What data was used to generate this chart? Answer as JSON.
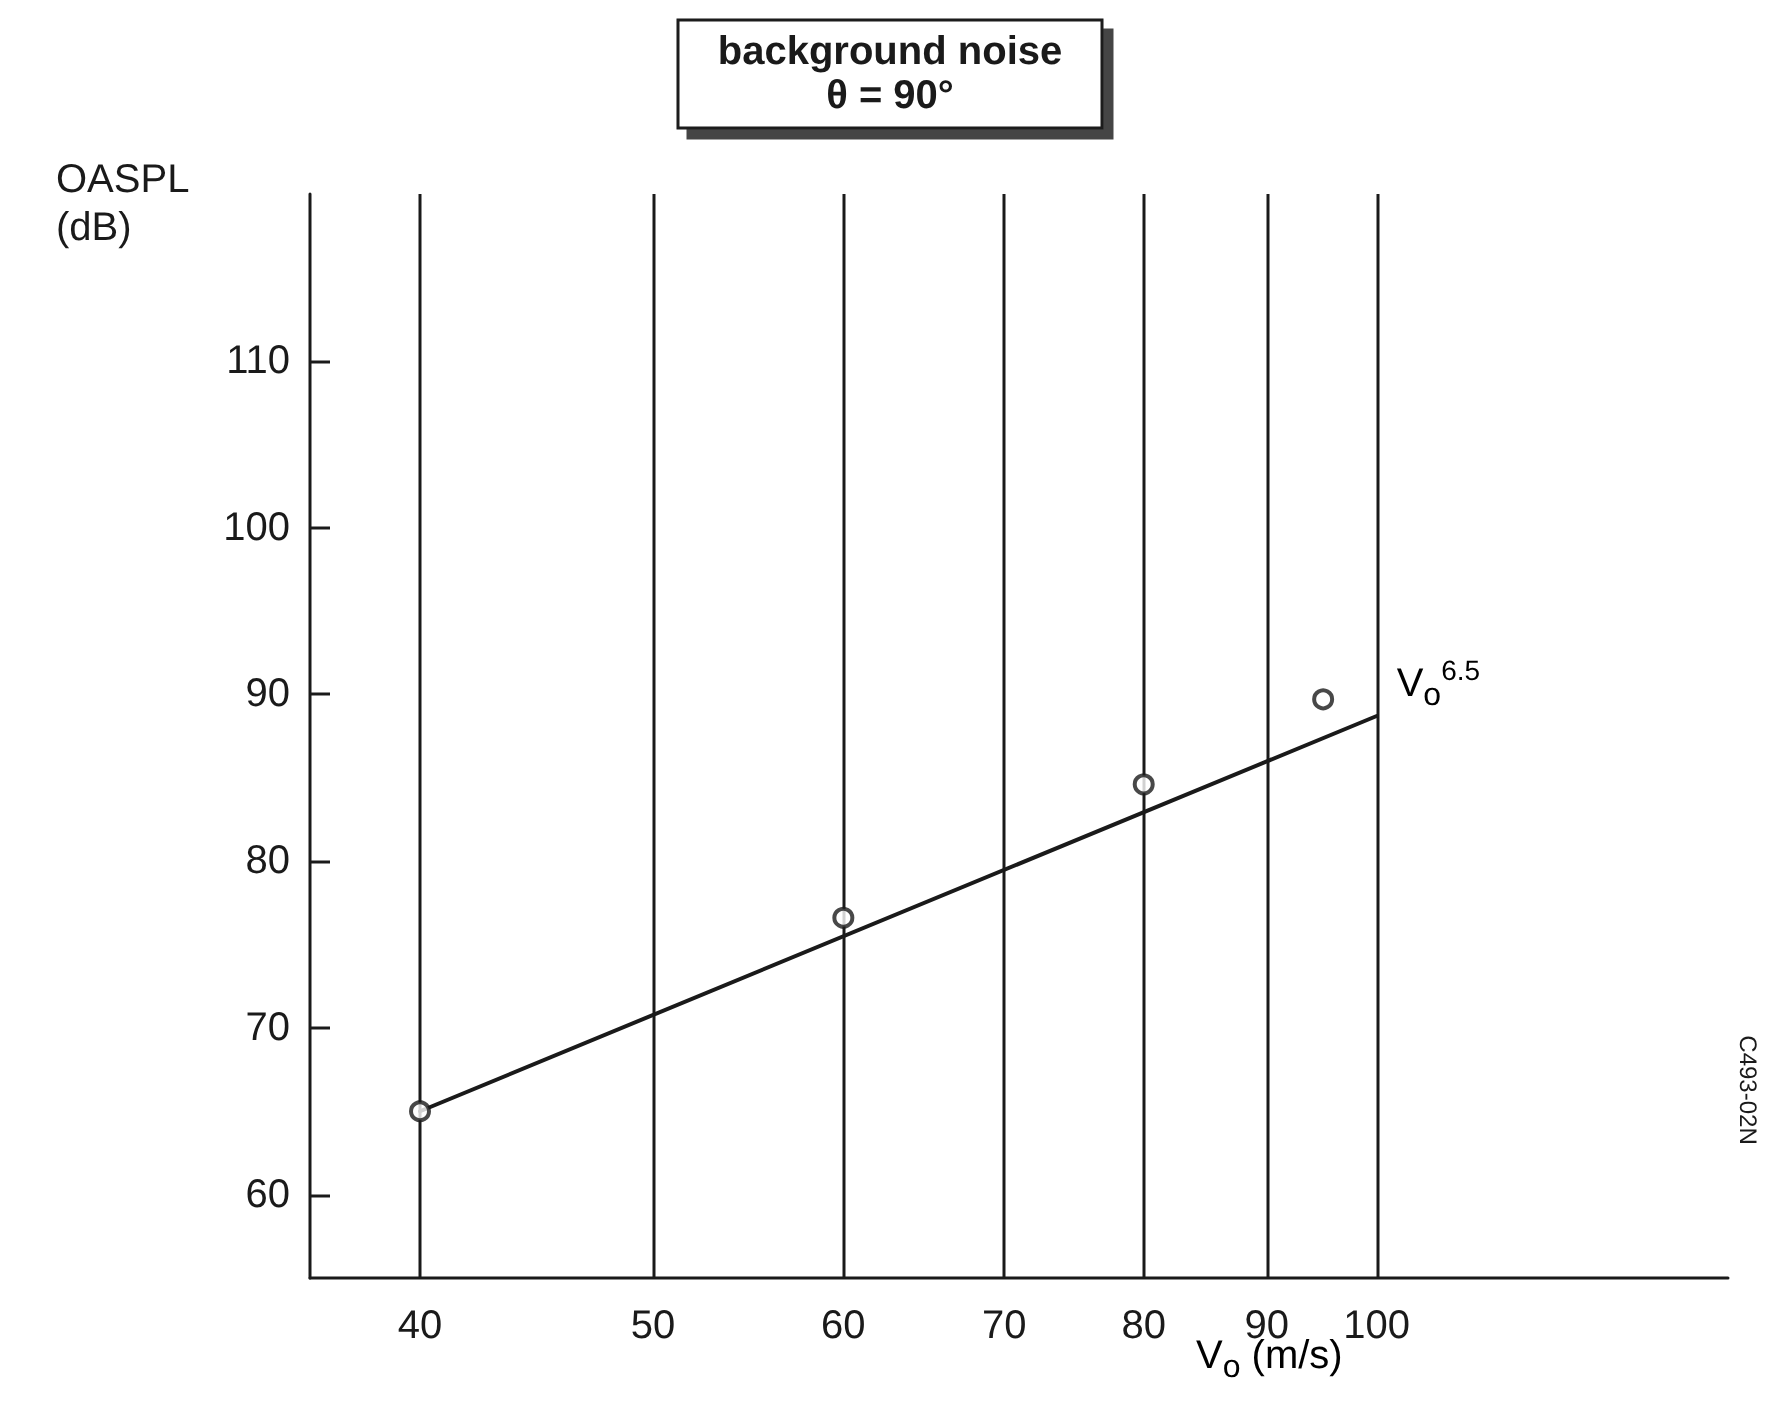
{
  "chart_data": {
    "type": "scatter",
    "title": "background noise",
    "subtitle": "θ = 90°",
    "xlabel": "V$_{o}$ (m/s)",
    "ylabel": "OASPL\n(dB)",
    "log": "x",
    "xlim": [
      36,
      140
    ],
    "xticks": [
      40,
      50,
      60,
      70,
      80,
      90,
      100
    ],
    "ylim": [
      55,
      120
    ],
    "yticks": [
      60,
      70,
      80,
      90,
      100,
      110
    ],
    "grid": "x",
    "series": [
      {
        "type": "line",
        "color": "#1a1a1a",
        "x": [
          40,
          100
        ],
        "values": [
          65,
          88.7
        ],
        "marker": "none",
        "line_style": "solid"
      },
      {
        "color": "#1a1a1a",
        "x": [
          40,
          60,
          80,
          95
        ],
        "values": [
          65,
          76.6,
          84.6,
          89.7
        ],
        "marker": "circle"
      }
    ],
    "annotations": [
      {
        "text": "V$_{o}$$^{6.5}$",
        "x": 100,
        "y": 88.7
      },
      "C493-02N"
    ]
  }
}
